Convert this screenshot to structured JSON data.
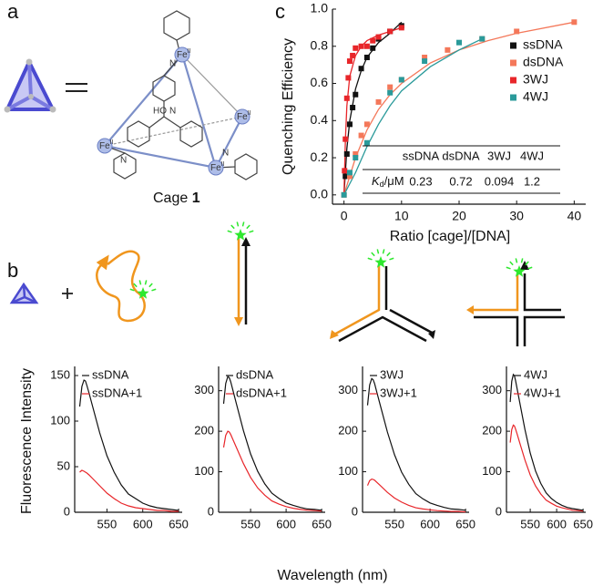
{
  "panel_labels": {
    "a": "a",
    "b": "b",
    "c": "c"
  },
  "panel_a": {
    "caption_text": "Cage ",
    "caption_number": "1",
    "fe_symbol": "Fe",
    "fe_charge": "II",
    "atom_n": "N",
    "atom_ho": "HO"
  },
  "panel_b": {
    "ylabel": "Fluorescence Intensity",
    "xlabel": "Wavelength (nm)"
  },
  "chart_data": [
    {
      "type": "scatter",
      "xlabel": "Ratio [cage]/[DNA]",
      "ylabel": "Quenching Efficiency",
      "xlim": [
        -2,
        42
      ],
      "xticks": [
        0,
        10,
        20,
        30,
        40
      ],
      "ylim": [
        -0.05,
        1.0
      ],
      "yticks": [
        {
          "value": 0,
          "label": "0.0"
        },
        0.2,
        0.4,
        0.6,
        0.8,
        {
          "value": 1,
          "label": "1.0"
        }
      ],
      "legend": "right",
      "series": [
        {
          "name": "ssDNA",
          "color": "#111111",
          "x": [
            0.25,
            0.5,
            1,
            1.5,
            2,
            3,
            4,
            5,
            6,
            8,
            10
          ],
          "values": [
            0.1,
            0.22,
            0.38,
            0.47,
            0.54,
            0.68,
            0.74,
            0.79,
            0.84,
            0.88,
            0.91
          ],
          "fit_x": [
            0,
            0.5,
            1,
            2,
            3,
            4,
            6,
            8,
            10
          ],
          "fit_values": [
            0,
            0.25,
            0.4,
            0.57,
            0.67,
            0.74,
            0.82,
            0.87,
            0.93
          ]
        },
        {
          "name": "dsDNA",
          "color": "#f4785a",
          "x": [
            0,
            1,
            2,
            3,
            4,
            6,
            8,
            10,
            14,
            18,
            24,
            30,
            40
          ],
          "values": [
            0.0,
            0.1,
            0.22,
            0.32,
            0.38,
            0.5,
            0.58,
            0.62,
            0.74,
            0.78,
            0.84,
            0.88,
            0.93
          ],
          "fit_x": [
            0,
            2,
            4,
            6,
            8,
            10,
            15,
            20,
            25,
            30,
            40
          ],
          "fit_values": [
            0,
            0.2,
            0.35,
            0.46,
            0.54,
            0.6,
            0.71,
            0.78,
            0.83,
            0.87,
            0.93
          ]
        },
        {
          "name": "3WJ",
          "color": "#e8262a",
          "x": [
            0.1,
            0.25,
            0.5,
            0.75,
            1,
            1.5,
            2,
            3,
            4,
            5,
            6,
            8,
            10
          ],
          "values": [
            0.13,
            0.3,
            0.52,
            0.63,
            0.72,
            0.75,
            0.79,
            0.8,
            0.8,
            0.83,
            0.85,
            0.88,
            0.9
          ],
          "fit_x": [
            0,
            0.25,
            0.5,
            1,
            2,
            3,
            4,
            6,
            8,
            10
          ],
          "fit_values": [
            0,
            0.3,
            0.48,
            0.64,
            0.75,
            0.8,
            0.83,
            0.86,
            0.88,
            0.9
          ]
        },
        {
          "name": "4WJ",
          "color": "#2a9a9a",
          "x": [
            0,
            1,
            2,
            4,
            8,
            10,
            14,
            20,
            24
          ],
          "values": [
            0.0,
            0.12,
            0.2,
            0.28,
            0.55,
            0.62,
            0.72,
            0.82,
            0.84
          ],
          "fit_x": [
            0,
            2,
            4,
            6,
            8,
            10,
            15,
            20,
            24
          ],
          "fit_values": [
            0,
            0.12,
            0.26,
            0.38,
            0.48,
            0.56,
            0.69,
            0.78,
            0.84
          ]
        }
      ],
      "table": {
        "header": [
          "ssDNA",
          "dsDNA",
          "3WJ",
          "4WJ"
        ],
        "row_symbol": "K",
        "row_subscript": "d",
        "row_unit": "/μM",
        "values": [
          0.23,
          0.72,
          0.094,
          1.2
        ]
      }
    },
    {
      "type": "line",
      "xlim": [
        505,
        655
      ],
      "xticks": [
        550,
        600,
        650
      ],
      "ylim": [
        0,
        160
      ],
      "yticks": [
        0,
        50,
        100,
        150
      ],
      "x": [
        512,
        515,
        518,
        520,
        522,
        525,
        530,
        540,
        550,
        560,
        570,
        580,
        590,
        600,
        610,
        620,
        630,
        640,
        650
      ],
      "series": [
        {
          "name": "ssDNA",
          "color": "#111111",
          "values": [
            116,
            138,
            145,
            144,
            139,
            131,
            116,
            87,
            62,
            44,
            30,
            20,
            15,
            10,
            7,
            5,
            4,
            3,
            2
          ]
        },
        {
          "name": "ssDNA+1",
          "color": "#e8262a",
          "values": [
            44,
            46,
            45,
            44,
            43,
            41,
            37,
            29,
            21,
            15,
            10,
            7,
            5,
            4,
            3,
            2,
            2,
            1,
            1
          ]
        }
      ]
    },
    {
      "type": "line",
      "xlim": [
        505,
        655
      ],
      "xticks": [
        550,
        600,
        650
      ],
      "ylim": [
        0,
        360
      ],
      "yticks": [
        0,
        100,
        200,
        300
      ],
      "x": [
        512,
        515,
        518,
        520,
        522,
        525,
        530,
        540,
        550,
        560,
        570,
        580,
        590,
        600,
        610,
        620,
        630,
        640,
        650
      ],
      "series": [
        {
          "name": "dsDNA",
          "color": "#111111",
          "values": [
            268,
            318,
            335,
            332,
            322,
            302,
            268,
            201,
            144,
            101,
            70,
            47,
            34,
            23,
            17,
            12,
            8,
            7,
            5
          ]
        },
        {
          "name": "dsDNA+1",
          "color": "#e8262a",
          "values": [
            160,
            190,
            200,
            198,
            192,
            180,
            160,
            120,
            86,
            60,
            42,
            28,
            20,
            14,
            10,
            7,
            5,
            4,
            3
          ]
        }
      ]
    },
    {
      "type": "line",
      "xlim": [
        505,
        655
      ],
      "xticks": [
        550,
        600,
        650
      ],
      "ylim": [
        0,
        360
      ],
      "yticks": [
        0,
        100,
        200,
        300
      ],
      "x": [
        512,
        515,
        518,
        520,
        522,
        525,
        530,
        540,
        550,
        560,
        570,
        580,
        590,
        600,
        610,
        620,
        630,
        640,
        650
      ],
      "series": [
        {
          "name": "3WJ",
          "color": "#111111",
          "values": [
            264,
            314,
            330,
            327,
            317,
            297,
            264,
            198,
            142,
            99,
            69,
            46,
            33,
            23,
            17,
            12,
            8,
            7,
            5
          ]
        },
        {
          "name": "3WJ+1",
          "color": "#e8262a",
          "values": [
            66,
            78,
            82,
            81,
            79,
            74,
            66,
            49,
            35,
            25,
            17,
            11,
            8,
            6,
            4,
            3,
            2,
            2,
            1
          ]
        }
      ]
    },
    {
      "type": "line",
      "xlim": [
        505,
        655
      ],
      "xticks": [
        550,
        600,
        650
      ],
      "ylim": [
        0,
        360
      ],
      "yticks": [
        0,
        100,
        200,
        300
      ],
      "x": [
        512,
        515,
        518,
        520,
        522,
        525,
        530,
        540,
        550,
        560,
        570,
        580,
        590,
        600,
        610,
        620,
        630,
        640,
        650
      ],
      "series": [
        {
          "name": "4WJ",
          "color": "#111111",
          "values": [
            272,
            323,
            340,
            337,
            326,
            306,
            272,
            204,
            146,
            102,
            71,
            48,
            34,
            24,
            17,
            12,
            9,
            7,
            5
          ]
        },
        {
          "name": "4WJ+1",
          "color": "#e8262a",
          "values": [
            172,
            204,
            215,
            213,
            206,
            194,
            172,
            129,
            92,
            65,
            45,
            30,
            22,
            15,
            11,
            8,
            5,
            4,
            3
          ]
        }
      ]
    }
  ]
}
